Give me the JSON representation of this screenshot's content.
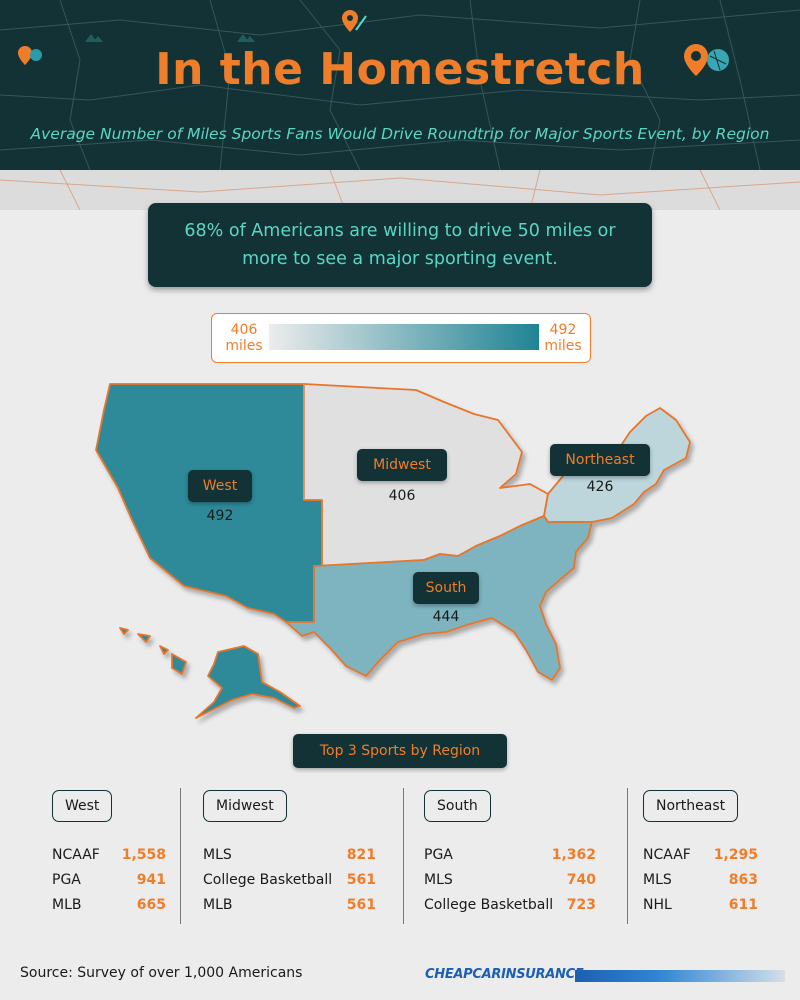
{
  "header": {
    "title": "In the Homestretch",
    "subtitle": "Average Number of Miles Sports Fans Would Drive Roundtrip for Major Sports Event, by Region"
  },
  "callout": "68% of Americans are willing to drive 50 miles or more to see a major sporting event.",
  "legend": {
    "min_value": "406",
    "min_unit": "miles",
    "max_value": "492",
    "max_unit": "miles",
    "min_color": "#ececec",
    "max_color": "#1f8394"
  },
  "regions": [
    {
      "name": "West",
      "value": "492",
      "color": "#2e8a99"
    },
    {
      "name": "Midwest",
      "value": "406",
      "color": "#e0e0e0"
    },
    {
      "name": "Northeast",
      "value": "426",
      "color": "#bcd6dc"
    },
    {
      "name": "South",
      "value": "444",
      "color": "#7db4c0"
    }
  ],
  "top3_title": "Top 3 Sports by Region",
  "top3": [
    {
      "region": "West",
      "items": [
        {
          "sport": "NCAAF",
          "miles": "1,558"
        },
        {
          "sport": "PGA",
          "miles": "941"
        },
        {
          "sport": "MLB",
          "miles": "665"
        }
      ]
    },
    {
      "region": "Midwest",
      "items": [
        {
          "sport": "MLS",
          "miles": "821"
        },
        {
          "sport": "College Basketball",
          "miles": "561"
        },
        {
          "sport": "MLB",
          "miles": "561"
        }
      ]
    },
    {
      "region": "South",
      "items": [
        {
          "sport": "PGA",
          "miles": "1,362"
        },
        {
          "sport": "MLS",
          "miles": "740"
        },
        {
          "sport": "College Basketball",
          "miles": "723"
        }
      ]
    },
    {
      "region": "Northeast",
      "items": [
        {
          "sport": "NCAAF",
          "miles": "1,295"
        },
        {
          "sport": "MLS",
          "miles": "863"
        },
        {
          "sport": "NHL",
          "miles": "611"
        }
      ]
    }
  ],
  "footer": {
    "source": "Source: Survey of over 1,000 Americans",
    "brand": "CHEAPCARINSURANCE"
  },
  "colors": {
    "accent": "#f07d2a",
    "dark": "#123236",
    "teal_text": "#5cd6c4"
  }
}
